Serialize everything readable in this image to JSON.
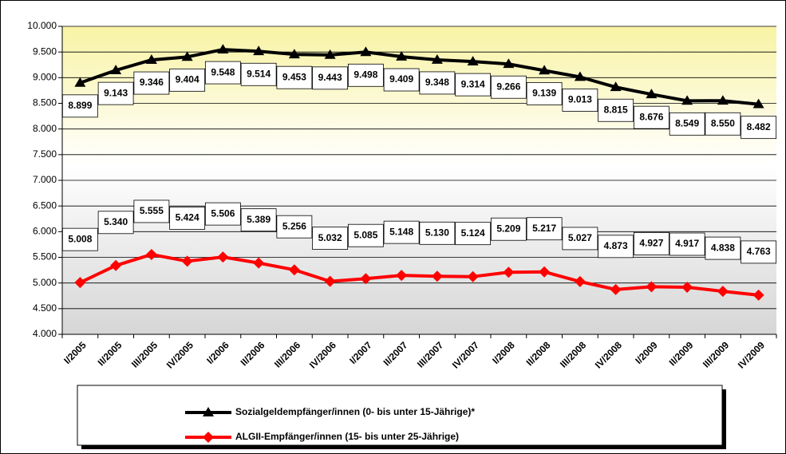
{
  "chart_data": {
    "type": "line",
    "categories": [
      "I/2005",
      "II/2005",
      "III/2005",
      "IV/2005",
      "I/2006",
      "II/2006",
      "III/2006",
      "IV/2006",
      "I/2007",
      "II/2007",
      "III/2007",
      "IV/2007",
      "I/2008",
      "II/2008",
      "III/2008",
      "IV/2008",
      "I/2009",
      "II/2009",
      "III/2009",
      "IV/2009"
    ],
    "series": [
      {
        "name": "Sozialgeldempfänger/innen (0- bis unter 15-Jährige)*",
        "color": "#000000",
        "marker": "triangle",
        "label_position": "below",
        "values": [
          8899,
          9143,
          9346,
          9404,
          9548,
          9514,
          9453,
          9443,
          9498,
          9409,
          9348,
          9314,
          9266,
          9139,
          9013,
          8815,
          8676,
          8549,
          8550,
          8482
        ],
        "value_labels": [
          "8.899",
          "9.143",
          "9.346",
          "9.404",
          "9.548",
          "9.514",
          "9.453",
          "9.443",
          "9.498",
          "9.409",
          "9.348",
          "9.314",
          "9.266",
          "9.139",
          "9.013",
          "8.815",
          "8.676",
          "8.549",
          "8.550",
          "8.482"
        ]
      },
      {
        "name": "ALGII-Empfänger/innen (15- bis unter 25-Jährige)",
        "color": "#ff0000",
        "marker": "diamond",
        "label_position": "above",
        "values": [
          5008,
          5340,
          5555,
          5424,
          5506,
          5389,
          5256,
          5032,
          5085,
          5148,
          5130,
          5124,
          5209,
          5217,
          5027,
          4873,
          4927,
          4917,
          4838,
          4763
        ],
        "value_labels": [
          "5.008",
          "5.340",
          "5.555",
          "5.424",
          "5.506",
          "5.389",
          "5.256",
          "5.032",
          "5.085",
          "5.148",
          "5.130",
          "5.124",
          "5.209",
          "5.217",
          "5.027",
          "4.873",
          "4.927",
          "4.917",
          "4.838",
          "4.763"
        ]
      }
    ],
    "ylim": [
      4000,
      10000
    ],
    "yticks": [
      {
        "value": 4000,
        "label": "4.000"
      },
      {
        "value": 4500,
        "label": "4.500"
      },
      {
        "value": 5000,
        "label": "5.000"
      },
      {
        "value": 5500,
        "label": "5.500"
      },
      {
        "value": 6000,
        "label": "6.000"
      },
      {
        "value": 6500,
        "label": "6.500"
      },
      {
        "value": 7000,
        "label": "7.000"
      },
      {
        "value": 7500,
        "label": "7.500"
      },
      {
        "value": 8000,
        "label": "8.000"
      },
      {
        "value": 8500,
        "label": "8.500"
      },
      {
        "value": 9000,
        "label": "9.000"
      },
      {
        "value": 9500,
        "label": "9.500"
      },
      {
        "value": 10000,
        "label": "10.000"
      }
    ],
    "grid": true,
    "legend": "bottom"
  }
}
